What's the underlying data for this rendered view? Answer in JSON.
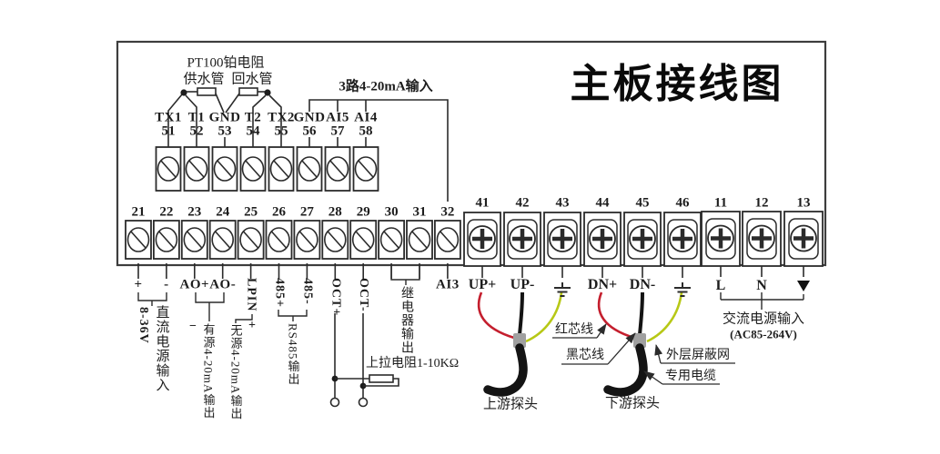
{
  "title": "主板接线图",
  "sensor_section": {
    "pt100_label": "PT100铂电阻",
    "supply_pipe_label": "供水管",
    "return_pipe_label": "回水管",
    "analog_input_label": "3路4-20mA输入",
    "terminals": [
      {
        "label": "TX1",
        "number": "51"
      },
      {
        "label": "T1",
        "number": "52"
      },
      {
        "label": "GND",
        "number": "53"
      },
      {
        "label": "T2",
        "number": "54"
      },
      {
        "label": "TX2",
        "number": "55"
      },
      {
        "label": "GND",
        "number": "56"
      },
      {
        "label": "AI5",
        "number": "57"
      },
      {
        "label": "AI4",
        "number": "58"
      }
    ]
  },
  "io_section": {
    "terminals": [
      {
        "number": "21",
        "label": "+"
      },
      {
        "number": "22",
        "label": "-"
      },
      {
        "number": "23",
        "label": "AO+"
      },
      {
        "number": "24",
        "label": "AO-"
      },
      {
        "number": "25",
        "label": "LPIN",
        "vertical": true
      },
      {
        "number": "26",
        "label": "485+",
        "vertical": true
      },
      {
        "number": "27",
        "label": "485-",
        "vertical": true
      },
      {
        "number": "28",
        "label": "OCT+",
        "vertical": true
      },
      {
        "number": "29",
        "label": "OCT-",
        "vertical": true
      },
      {
        "number": "30",
        "label": ""
      },
      {
        "number": "31",
        "label": ""
      },
      {
        "number": "32",
        "label": "AI3"
      }
    ],
    "dc_range_label": "8-36V",
    "dc_power_label": "直流电源输入",
    "active_polarity": "−",
    "active_output_label": "有源4-20mA输出",
    "passive_polarity": "+",
    "passive_output_label": "无源4-20mA输出",
    "rs485_output_label": "RS485输出",
    "relay_output_label": "继电器输出",
    "pullup_label": "上拉电阻1-10KΩ"
  },
  "probe_section": {
    "terminals": [
      {
        "number": "41",
        "label": "UP+"
      },
      {
        "number": "42",
        "label": "UP-"
      },
      {
        "number": "43",
        "icon": "earth-ground"
      },
      {
        "number": "44",
        "label": "DN+"
      },
      {
        "number": "45",
        "label": "DN-"
      },
      {
        "number": "46",
        "icon": "earth-ground"
      }
    ],
    "red_core_label": "红芯线",
    "black_core_label": "黑芯线",
    "shield_label": "外层屏蔽网",
    "cable_label": "专用电缆",
    "upstream_label": "上游探头",
    "downstream_label": "下游探头"
  },
  "power_section": {
    "terminals": [
      {
        "number": "11",
        "label": "L"
      },
      {
        "number": "12",
        "label": "N"
      },
      {
        "number": "13",
        "icon": "ground-triangle"
      }
    ],
    "ac_power_label": "交流电源输入",
    "ac_range_label": "(AC85-264V)"
  },
  "colors": {
    "line": "#2b2b2b",
    "wire_red": "#c41f2e",
    "wire_black": "#141414",
    "wire_yellow_green": "#b7c816",
    "sleeve": "#a0a0a0"
  }
}
